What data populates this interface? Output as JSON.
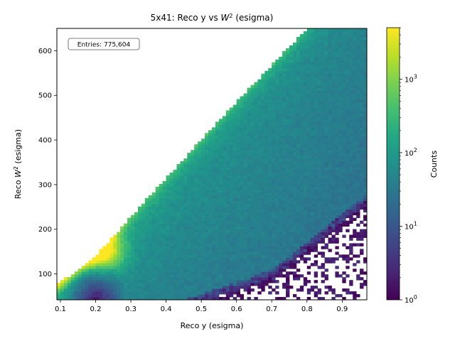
{
  "chart_data": {
    "type": "heatmap",
    "title_prefix": "5x41: Reco y vs ",
    "title_math": "W",
    "title_sup": "2",
    "title_suffix": " (esigma)",
    "xlabel": "Reco y (esigma)",
    "ylabel_prefix": "Reco ",
    "ylabel_math": "W",
    "ylabel_sup": "2",
    "ylabel_suffix": " (esigma)",
    "xlim": [
      0.09,
      0.97
    ],
    "ylim": [
      42,
      650
    ],
    "xticks": [
      0.1,
      0.2,
      0.3,
      0.4,
      0.5,
      0.6,
      0.7,
      0.8,
      0.9
    ],
    "xtick_labels": [
      "0.1",
      "0.2",
      "0.3",
      "0.4",
      "0.5",
      "0.6",
      "0.7",
      "0.8",
      "0.9"
    ],
    "yticks": [
      100,
      200,
      300,
      400,
      500,
      600
    ],
    "ytick_labels": [
      "100",
      "200",
      "300",
      "400",
      "500",
      "600"
    ],
    "annotation": "Entries: 775,604",
    "entries": 775604,
    "colorbar": {
      "label": "Counts",
      "scale": "log",
      "range": [
        1,
        5000
      ],
      "ticks": [
        1,
        10,
        100,
        1000
      ],
      "tick_base": "10",
      "tick_exps": [
        "0",
        "1",
        "2",
        "3"
      ],
      "colormap": "viridis",
      "colors": [
        "#440154",
        "#482475",
        "#414487",
        "#355f8d",
        "#2a788e",
        "#21918c",
        "#22a884",
        "#44bf70",
        "#7ad151",
        "#bddf26",
        "#fde725"
      ]
    },
    "approx_features": {
      "upper_kinematic_edge": [
        [
          0.09,
          75
        ],
        [
          0.2,
          140
        ],
        [
          0.4,
          315
        ],
        [
          0.6,
          485
        ],
        [
          0.8,
          650
        ]
      ],
      "lower_band_edge": [
        [
          0.5,
          55
        ],
        [
          0.7,
          110
        ],
        [
          0.97,
          280
        ]
      ],
      "hot_spot": {
        "x": 0.22,
        "y": 150,
        "counts": 4500
      },
      "low_stat_pocket": {
        "x_range": [
          0.1,
          0.28
        ],
        "y_range": [
          42,
          130
        ]
      }
    }
  }
}
